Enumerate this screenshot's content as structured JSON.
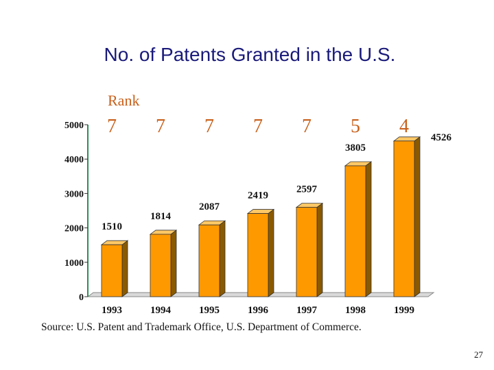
{
  "slide": {
    "title": "No. of Patents Granted in the U.S.",
    "rank_label": "Rank",
    "source": "Source:  U.S. Patent and Trademark Office, U.S. Department of Commerce.",
    "page_number": "27"
  },
  "colors": {
    "bar_front": "#ff9900",
    "bar_side": "#8a5a00",
    "bar_top": "#ffc866",
    "bar_outline": "#333333",
    "axis": "#2e8b57",
    "floor": "#d9d9d9",
    "rank_text": "#c8601a",
    "title_text": "#1a1a7a"
  },
  "chart_data": {
    "type": "bar",
    "title": "No. of Patents Granted in the U.S.",
    "categories": [
      "1993",
      "1994",
      "1995",
      "1996",
      "1997",
      "1998",
      "1999"
    ],
    "values": [
      1510,
      1814,
      2087,
      2419,
      2597,
      3805,
      4526
    ],
    "value_labels": [
      "1510",
      "1814",
      "2087",
      "2419",
      "2597",
      "3805",
      "4526"
    ],
    "ranks": [
      "7",
      "7",
      "7",
      "7",
      "7",
      "5",
      "4"
    ],
    "yticks": [
      "0",
      "1000",
      "2000",
      "3000",
      "4000",
      "5000"
    ],
    "ylim": [
      0,
      5000
    ],
    "grid": false,
    "legend": "none",
    "style": "3d-columns"
  }
}
